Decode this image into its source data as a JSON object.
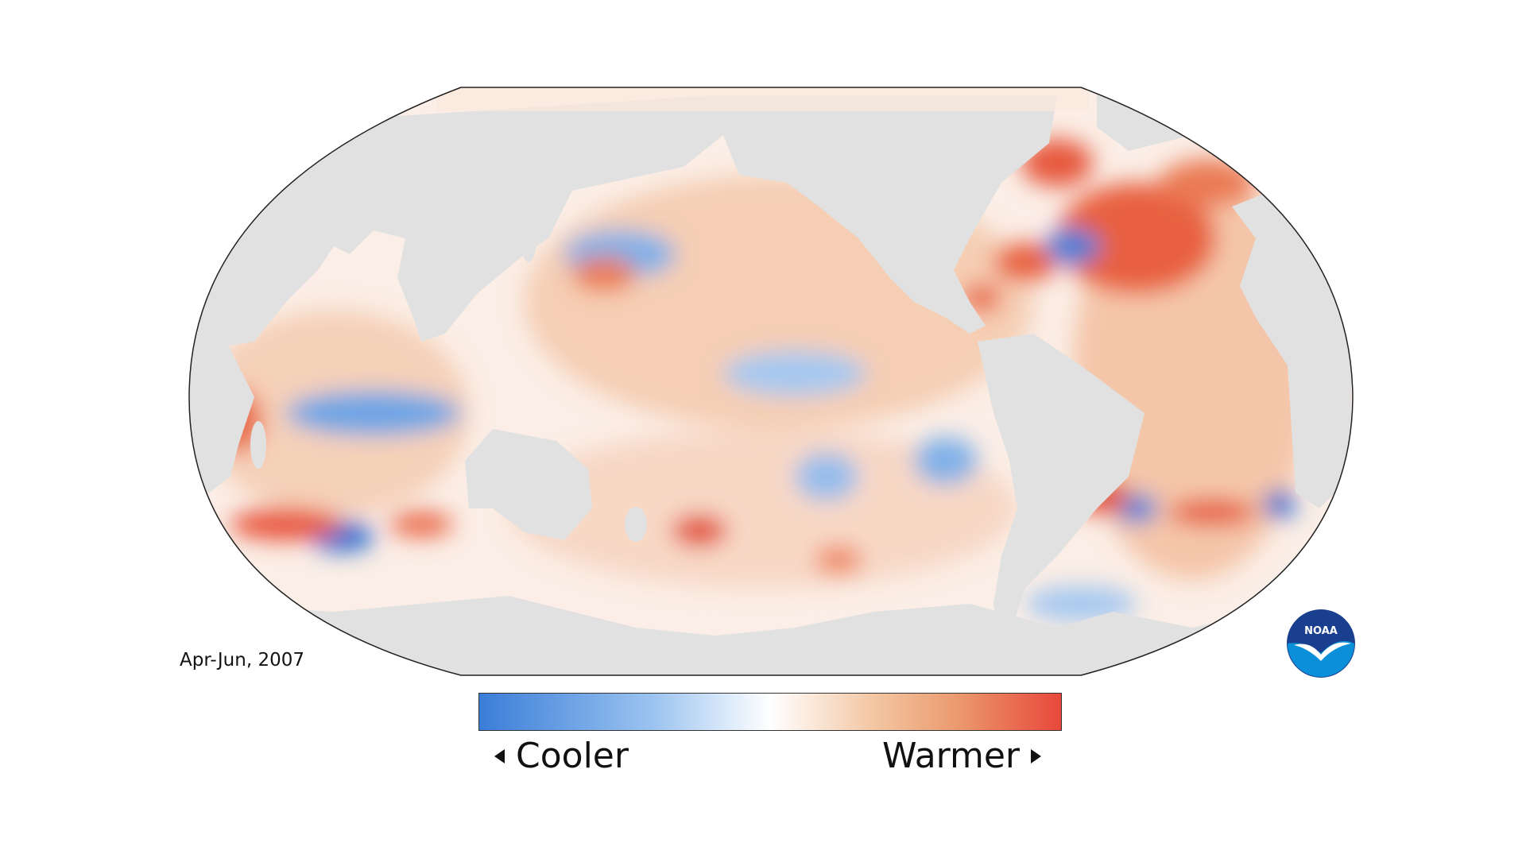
{
  "map": {
    "period_label": "Apr-Jun, 2007",
    "projection": "robinson-pacific-centered",
    "land_color": "#e1e1e1",
    "outline_color": "#222222"
  },
  "legend": {
    "low_label": "Cooler",
    "high_label": "Warmer",
    "low_color": "#3a7dd8",
    "mid_color": "#ffffff",
    "high_color": "#e8483a"
  },
  "logo": {
    "icon": "noaa-logo-icon",
    "text": "NOAA",
    "ring_color": "#1b3f8f",
    "fill_color": "#0a8fd8"
  }
}
